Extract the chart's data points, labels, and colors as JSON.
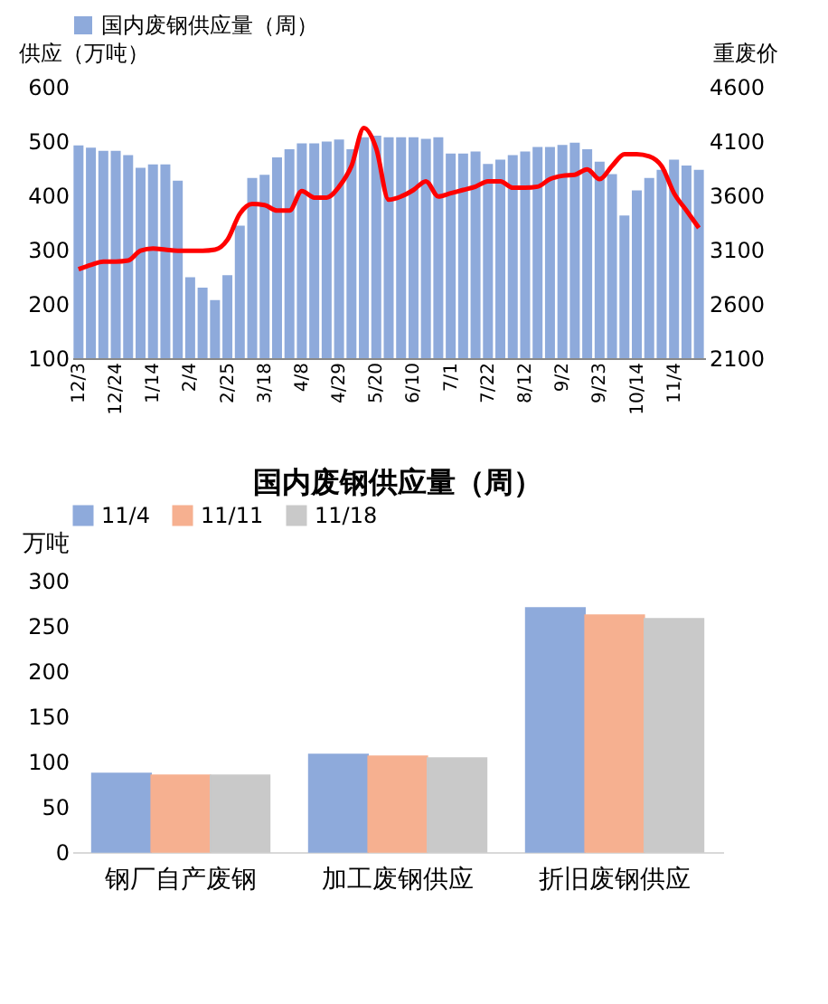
{
  "chart_data": [
    {
      "type": "bar",
      "ylabel": "供应（万吨）",
      "y2label": "重废价",
      "legend": "top",
      "categories": [
        "12/3",
        null,
        null,
        "12/24",
        null,
        null,
        "1/14",
        null,
        null,
        "2/4",
        null,
        null,
        "2/25",
        null,
        null,
        "3/18",
        null,
        null,
        "4/8",
        null,
        null,
        "4/29",
        null,
        null,
        "5/20",
        null,
        null,
        "6/10",
        null,
        null,
        "7/1",
        null,
        null,
        "7/22",
        null,
        null,
        "8/12",
        null,
        null,
        "9/2",
        null,
        null,
        "9/23",
        null,
        null,
        "10/14",
        null,
        null,
        "11/4",
        null,
        null
      ],
      "ylim": [
        100,
        600
      ],
      "yticks": [
        100,
        200,
        300,
        400,
        500,
        600
      ],
      "y2lim": [
        2100,
        4600
      ],
      "y2ticks": [
        2100,
        2600,
        3100,
        3600,
        4100,
        4600
      ],
      "series": [
        {
          "name": "国内废钢供应量（周）",
          "type": "bar",
          "color": "#8eaadb",
          "values": [
            492,
            488,
            482,
            482,
            474,
            451,
            457,
            457,
            427,
            249,
            230,
            207,
            253,
            344,
            432,
            438,
            470,
            485,
            496,
            496,
            499,
            503,
            485,
            507,
            510,
            507,
            507,
            507,
            504,
            507,
            477,
            477,
            481,
            458,
            466,
            474,
            481,
            489,
            489,
            493,
            497,
            485,
            462,
            439,
            363,
            409,
            432,
            447,
            466,
            455,
            447
          ]
        },
        {
          "type": "line",
          "axis": "y2",
          "color": "#ff0000",
          "values": [
            2920,
            2960,
            2990,
            2990,
            3000,
            3090,
            3110,
            3100,
            3090,
            3090,
            3090,
            3100,
            3190,
            3430,
            3520,
            3510,
            3460,
            3460,
            3640,
            3580,
            3580,
            3680,
            3870,
            4220,
            4030,
            3560,
            3590,
            3650,
            3730,
            3590,
            3620,
            3650,
            3680,
            3730,
            3730,
            3670,
            3670,
            3680,
            3750,
            3780,
            3790,
            3840,
            3750,
            3870,
            3980,
            3980,
            3960,
            3870,
            3620,
            3460,
            3300
          ]
        }
      ]
    },
    {
      "type": "bar",
      "title": "国内废钢供应量（周）",
      "ylabel": "万吨",
      "legend": "top",
      "categories": [
        "钢厂自产废钢",
        "加工废钢供应",
        "折旧废钢供应"
      ],
      "ylim": [
        0,
        300
      ],
      "yticks": [
        0,
        50,
        100,
        150,
        200,
        250,
        300
      ],
      "series": [
        {
          "name": "11/4",
          "color": "#8eaadb",
          "values": [
            87,
            108,
            270
          ]
        },
        {
          "name": "11/11",
          "color": "#f6b090",
          "values": [
            85,
            106,
            262
          ]
        },
        {
          "name": "11/18",
          "color": "#c9c9c9",
          "values": [
            85,
            104,
            258
          ]
        }
      ]
    }
  ]
}
